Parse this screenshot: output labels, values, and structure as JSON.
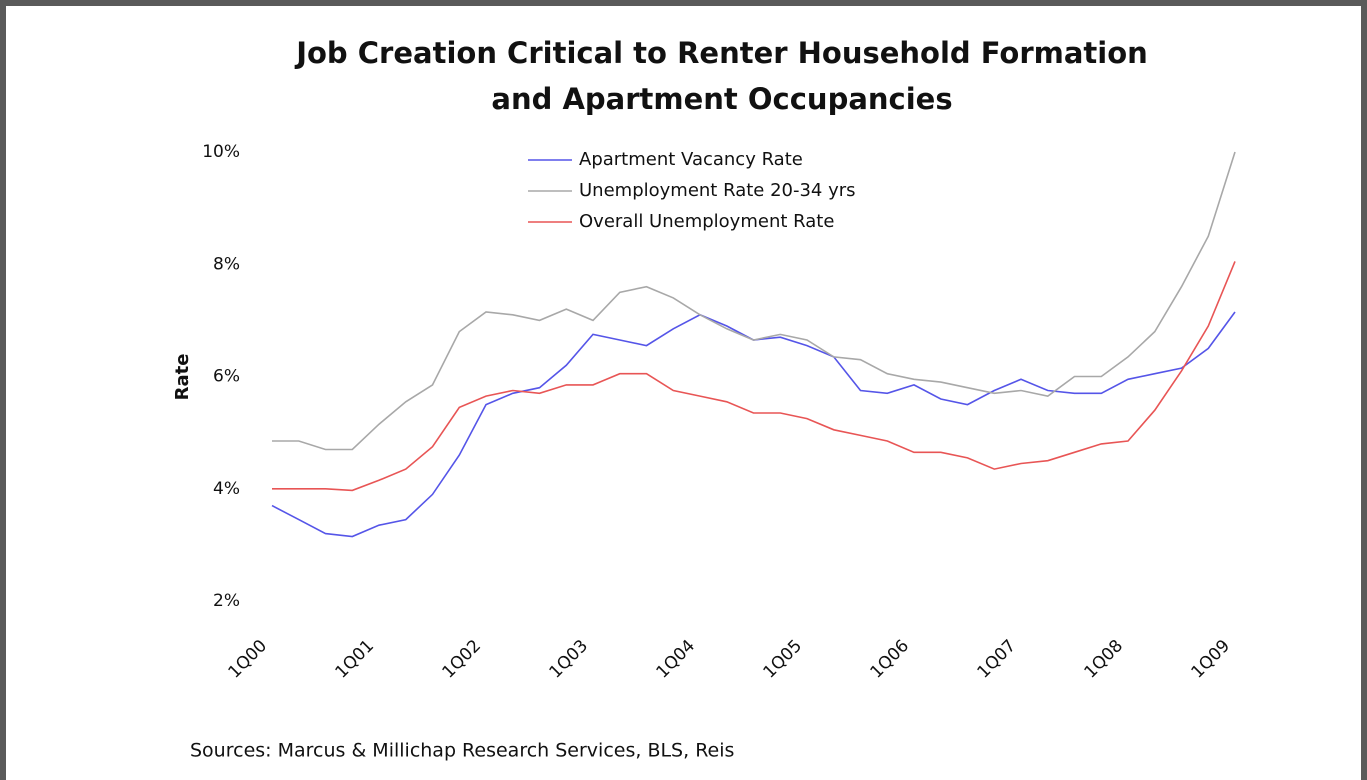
{
  "chart_data": {
    "type": "line",
    "title": [
      "Job Creation Critical to Renter Household Formation",
      "and Apartment Occupancies"
    ],
    "y_label": "Rate",
    "source": "Sources: Marcus & Millichap Research Services, BLS, Reis",
    "categories": [
      "1Q00",
      null,
      null,
      null,
      "1Q01",
      null,
      null,
      null,
      "1Q02",
      null,
      null,
      null,
      "1Q03",
      null,
      null,
      null,
      "1Q04",
      null,
      null,
      null,
      "1Q05",
      null,
      null,
      null,
      "1Q06",
      null,
      null,
      null,
      "1Q07",
      null,
      null,
      null,
      "1Q08",
      null,
      null,
      null,
      "1Q09"
    ],
    "series": [
      {
        "name": "Apartment Vacancy Rate",
        "color": "#5555e8",
        "values": [
          3.7,
          3.45,
          3.2,
          3.15,
          3.35,
          3.45,
          3.9,
          4.6,
          5.5,
          5.7,
          5.8,
          6.2,
          6.75,
          6.65,
          6.55,
          6.85,
          7.1,
          6.9,
          6.65,
          6.7,
          6.55,
          6.35,
          5.75,
          5.7,
          5.85,
          5.6,
          5.5,
          5.75,
          5.95,
          5.75,
          5.7,
          5.7,
          5.95,
          6.05,
          6.15,
          6.5,
          7.15
        ]
      },
      {
        "name": "Unemployment Rate 20-34 yrs",
        "color": "#a8a8a8",
        "values": [
          4.85,
          4.85,
          4.7,
          4.7,
          5.15,
          5.55,
          5.85,
          6.8,
          7.15,
          7.1,
          7.0,
          7.2,
          7.0,
          7.5,
          7.6,
          7.4,
          7.1,
          6.85,
          6.65,
          6.75,
          6.65,
          6.35,
          6.3,
          6.05,
          5.95,
          5.9,
          5.8,
          5.7,
          5.75,
          5.65,
          6.0,
          6.0,
          6.35,
          6.8,
          7.6,
          8.5,
          10.0
        ]
      },
      {
        "name": "Overall Unemployment Rate",
        "color": "#e85555",
        "values": [
          4.0,
          4.0,
          4.0,
          3.97,
          4.15,
          4.35,
          4.75,
          5.45,
          5.65,
          5.75,
          5.7,
          5.85,
          5.85,
          6.05,
          6.05,
          5.75,
          5.65,
          5.55,
          5.35,
          5.35,
          5.25,
          5.05,
          4.95,
          4.85,
          4.65,
          4.65,
          4.55,
          4.35,
          4.45,
          4.5,
          4.65,
          4.8,
          4.85,
          5.4,
          6.1,
          6.9,
          8.05
        ]
      }
    ],
    "ylim": [
      2,
      10
    ],
    "yticks": [
      {
        "value": 2,
        "label": "2%"
      },
      {
        "value": 4,
        "label": "4%"
      },
      {
        "value": 6,
        "label": "6%"
      },
      {
        "value": 8,
        "label": "8%"
      },
      {
        "value": 10,
        "label": "10%"
      }
    ],
    "grid": false
  }
}
